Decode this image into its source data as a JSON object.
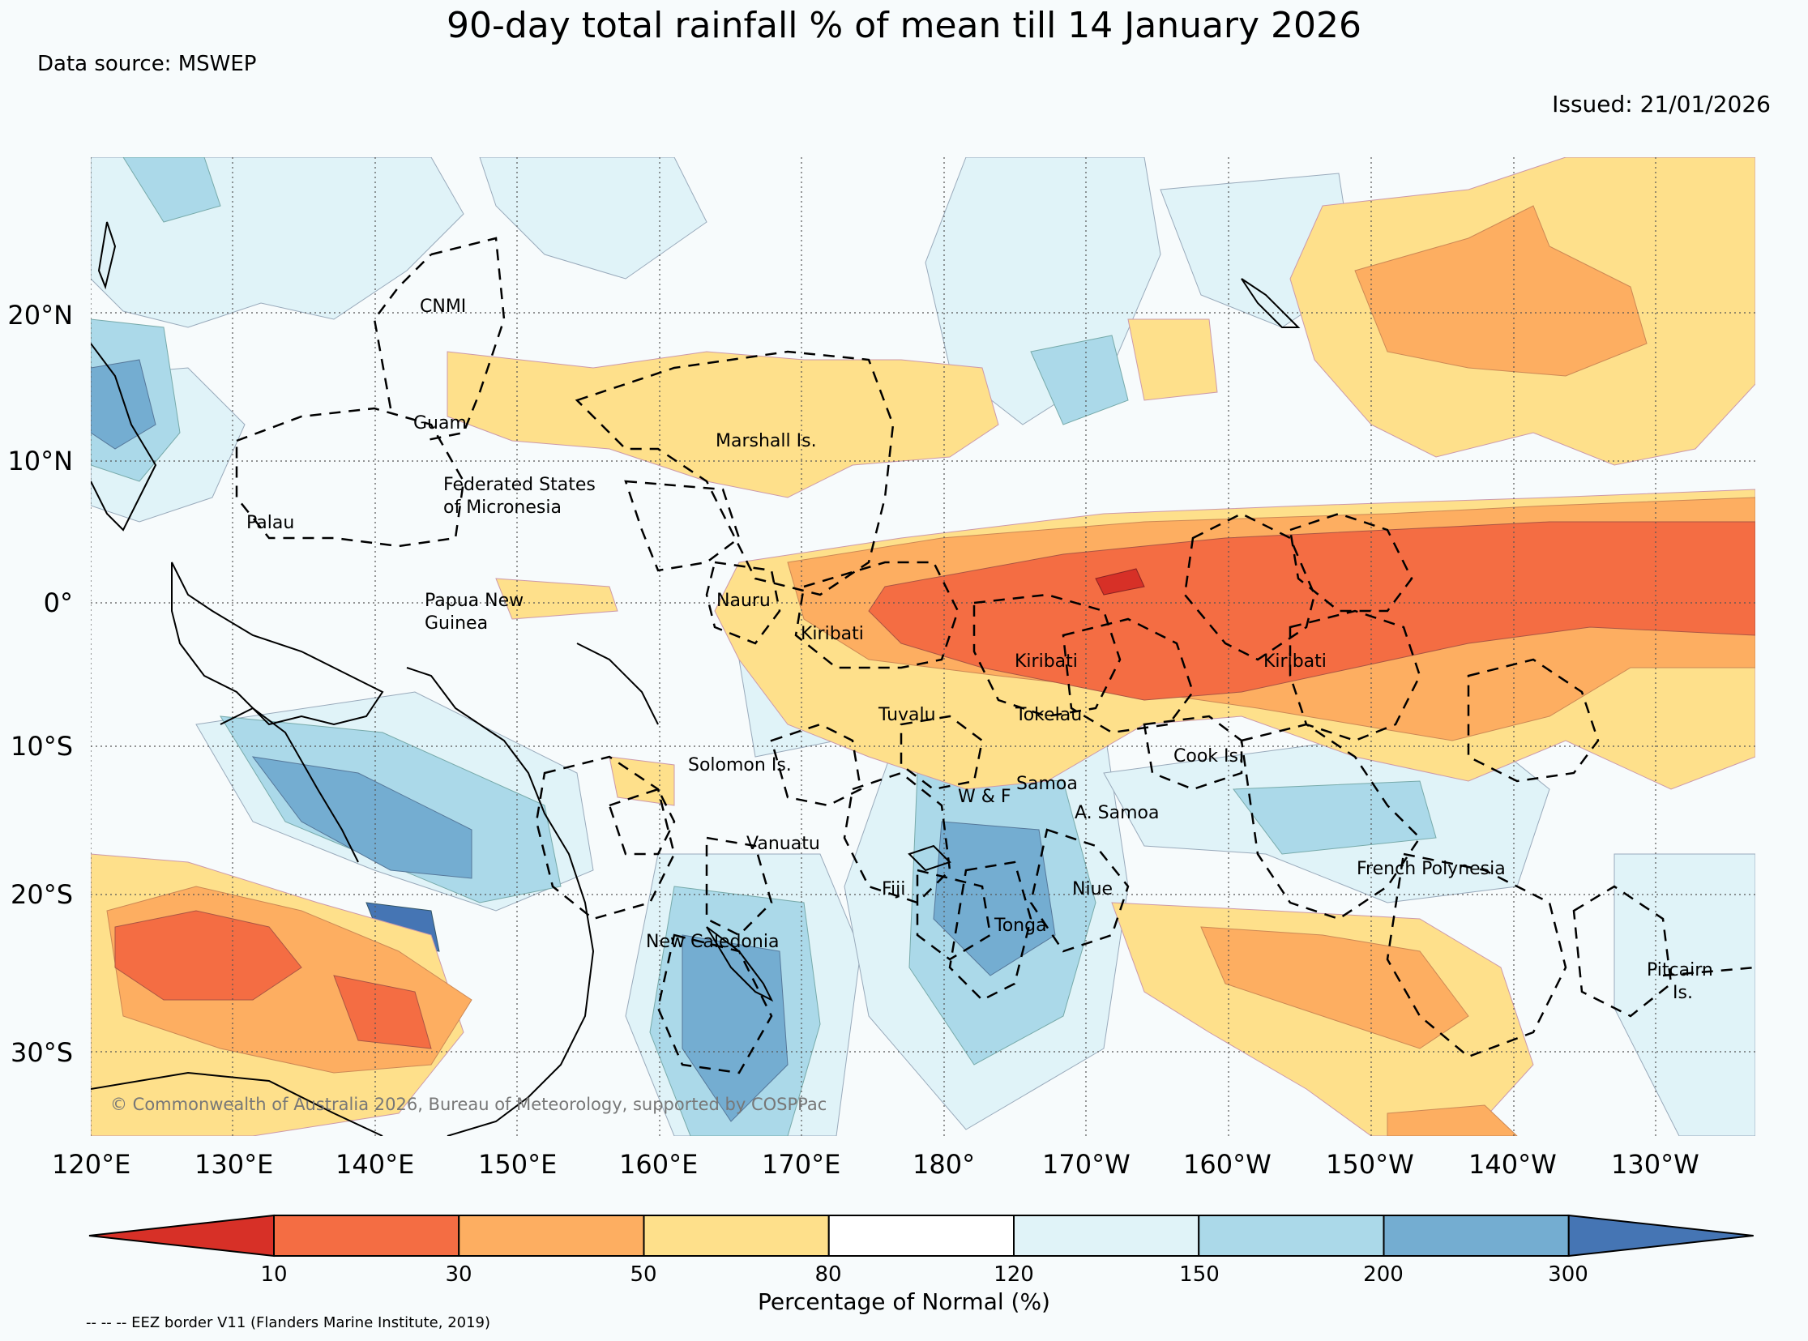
{
  "title": "90-day total rainfall % of mean till 14 January 2026",
  "source": "Data source: MSWEP",
  "issued": "Issued: 21/01/2026",
  "copyright": "© Commonwealth of Australia 2026, Bureau of Meteorology, supported by COSPPac",
  "lat_labels": [
    "20°N",
    "10°N",
    "0°",
    "10°S",
    "20°S",
    "30°S"
  ],
  "lon_labels": [
    "120°E",
    "130°E",
    "140°E",
    "150°E",
    "160°E",
    "170°E",
    "180°",
    "170°W",
    "160°W",
    "150°W",
    "140°W",
    "130°W"
  ],
  "countries": [
    "CNMI",
    "Guam",
    "Marshall Is.",
    "Federated States",
    "of Micronesia",
    "Palau",
    "Papua New",
    "Guinea",
    "Nauru",
    "Kiribati",
    "Kiribati",
    "Kiribati",
    "Tuvalu",
    "Tokelau",
    "Cook Is.",
    "Solomon Is.",
    "Samoa",
    "W & F",
    "A. Samoa",
    "Vanuatu",
    "Fiji",
    "Niue",
    "Tonga",
    "French Polynesia",
    "New Caledonia",
    "Pitcairn",
    "Is."
  ],
  "colorbar": {
    "ticks": [
      "10",
      "30",
      "50",
      "80",
      "120",
      "150",
      "200",
      "300"
    ],
    "label": "Percentage of Normal (%)",
    "colors": [
      "#d73027",
      "#f46d43",
      "#fdae61",
      "#fee08b",
      "#ffffff",
      "#e0f3f8",
      "#abd9e9",
      "#74add1",
      "#4575b4"
    ]
  },
  "eez_note": "-- -- -- EEZ border V11 (Flanders Marine Institute, 2019)"
}
